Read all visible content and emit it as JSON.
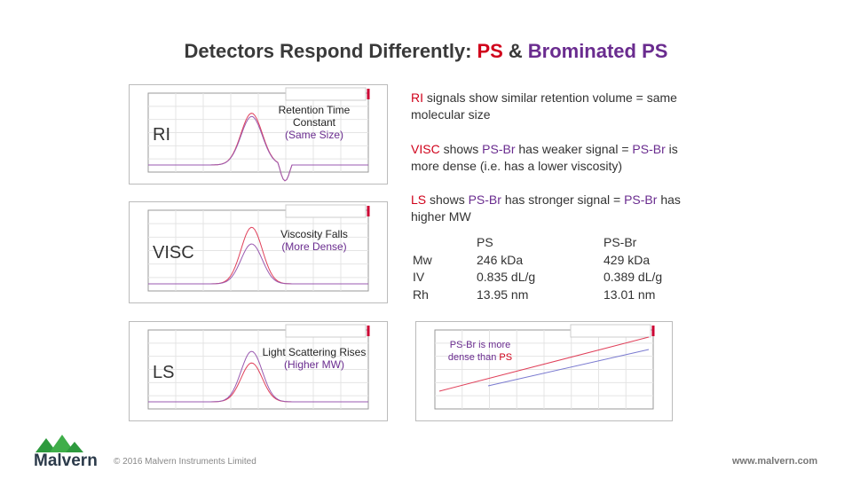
{
  "title": {
    "lead": "Detectors Respond Differently:",
    "ps": "PS",
    "amp": "&",
    "brominated": "Brominated PS"
  },
  "panels": [
    {
      "label": "RI",
      "annotation": "Retention Time Constant",
      "note": "(Same Size)"
    },
    {
      "label": "VISC",
      "annotation": "Viscosity Falls",
      "note": "(More Dense)"
    },
    {
      "label": "LS",
      "annotation": "Light Scattering Rises",
      "note": "(Higher MW)"
    }
  ],
  "statements": [
    [
      {
        "text": "RI",
        "style": "red"
      },
      {
        "text": "signals show similar retention volume = same molecular size"
      }
    ],
    [
      {
        "text": "VISC",
        "style": "red"
      },
      {
        "text": "shows"
      },
      {
        "text": "PS-Br",
        "style": "purple"
      },
      {
        "text": "has weaker signal ="
      },
      {
        "text": "PS-Br",
        "style": "purple"
      },
      {
        "text": "is more dense (i.e. has a lower viscosity)"
      }
    ],
    [
      {
        "text": "LS",
        "style": "red"
      },
      {
        "text": "shows"
      },
      {
        "text": "PS-Br",
        "style": "purple"
      },
      {
        "text": "has stronger signal ="
      },
      {
        "text": "PS-Br",
        "style": "purple"
      },
      {
        "text": "has higher MW"
      }
    ]
  ],
  "table": {
    "columns": [
      "PS",
      "PS-Br"
    ],
    "rows": [
      {
        "label": "Mw",
        "values": [
          "246 kDa",
          "429 kDa"
        ]
      },
      {
        "label": "IV",
        "values": [
          "0.835 dL/g",
          "0.389 dL/g"
        ]
      },
      {
        "label": "Rh",
        "values": [
          "13.95 nm",
          "13.01 nm"
        ]
      }
    ]
  },
  "plot_note": {
    "psbr": "PS-Br",
    "text": "is more dense than",
    "ps": "PS"
  },
  "footer": {
    "logo": "Malvern",
    "copyright": "© 2016 Malvern Instruments Limited",
    "url": "www.malvern.com"
  }
}
